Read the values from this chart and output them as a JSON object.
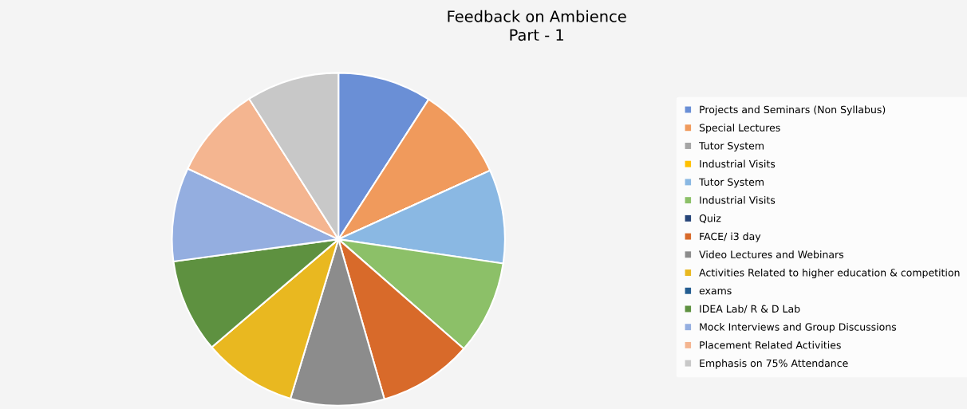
{
  "chart_data": {
    "type": "pie",
    "title": "Feedback on Ambience\nPart - 1",
    "categories": [
      "Projects and Seminars (Non Syllabus)",
      "Special Lectures",
      "Tutor System",
      "Industrial Visits",
      "Tutor System",
      "Industrial Visits",
      "Quiz",
      "FACE/ i3 day",
      "Video Lectures and Webinars",
      "Activities Related to higher education & competition",
      "exams",
      "IDEA Lab/ R & D Lab",
      "Mock Interviews and Group Discussions",
      "Placement Related Activities",
      "Emphasis on 75% Attendance"
    ],
    "values": [
      9.1,
      9.1,
      0,
      0,
      9.1,
      9.1,
      0,
      9.1,
      9.1,
      9.1,
      0,
      9.1,
      9.1,
      9.0,
      9.0
    ],
    "colors": [
      "#6a8fd6",
      "#f09a5c",
      "#a5a5a5",
      "#ffc000",
      "#8ab8e3",
      "#8cc068",
      "#264478",
      "#d86a2a",
      "#8c8c8c",
      "#e9b820",
      "#255e91",
      "#5e9140",
      "#94aee0",
      "#f4b590",
      "#c8c8c8"
    ],
    "legend": "right"
  }
}
